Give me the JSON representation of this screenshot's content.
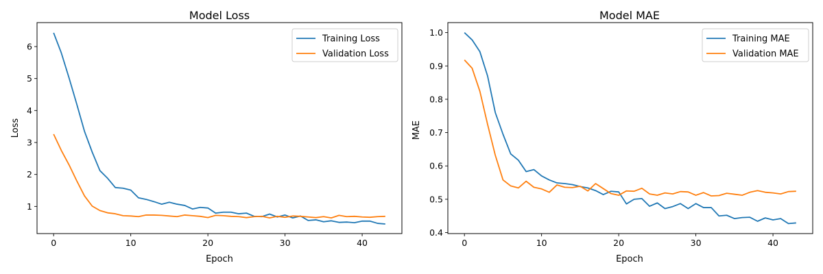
{
  "chart_data": [
    {
      "type": "line",
      "title": "Model Loss",
      "xlabel": "Epoch",
      "ylabel": "Loss",
      "xlim": [
        -2.15,
        45.15
      ],
      "ylim": [
        0.15,
        6.75
      ],
      "xticks": [
        "0",
        "10",
        "20",
        "30",
        "40"
      ],
      "yticks": [
        "1",
        "2",
        "3",
        "4",
        "5",
        "6"
      ],
      "legend": "upper right",
      "x": [
        0,
        1,
        2,
        3,
        4,
        5,
        6,
        7,
        8,
        9,
        10,
        11,
        12,
        13,
        14,
        15,
        16,
        17,
        18,
        19,
        20,
        21,
        22,
        23,
        24,
        25,
        26,
        27,
        28,
        29,
        30,
        31,
        32,
        33,
        34,
        35,
        36,
        37,
        38,
        39,
        40,
        41,
        42,
        43
      ],
      "series": [
        {
          "name": "Training Loss",
          "color": "#1f77b4",
          "values": [
            6.43,
            5.8,
            5.02,
            4.2,
            3.35,
            2.7,
            2.12,
            1.88,
            1.59,
            1.57,
            1.51,
            1.27,
            1.22,
            1.15,
            1.07,
            1.13,
            1.07,
            1.03,
            0.92,
            0.97,
            0.95,
            0.79,
            0.82,
            0.82,
            0.77,
            0.79,
            0.69,
            0.68,
            0.76,
            0.67,
            0.73,
            0.64,
            0.7,
            0.56,
            0.58,
            0.52,
            0.55,
            0.5,
            0.51,
            0.49,
            0.54,
            0.54,
            0.47,
            0.45
          ]
        },
        {
          "name": "Validation Loss",
          "color": "#ff7f0e",
          "values": [
            3.26,
            2.75,
            2.3,
            1.8,
            1.33,
            1.01,
            0.87,
            0.8,
            0.77,
            0.71,
            0.7,
            0.68,
            0.73,
            0.73,
            0.72,
            0.7,
            0.68,
            0.73,
            0.71,
            0.69,
            0.65,
            0.72,
            0.71,
            0.69,
            0.68,
            0.65,
            0.68,
            0.69,
            0.64,
            0.69,
            0.66,
            0.7,
            0.69,
            0.67,
            0.65,
            0.68,
            0.64,
            0.72,
            0.68,
            0.69,
            0.67,
            0.66,
            0.68,
            0.69
          ]
        }
      ]
    },
    {
      "type": "line",
      "title": "Model MAE",
      "xlabel": "Epoch",
      "ylabel": "MAE",
      "xlim": [
        -2.15,
        45.15
      ],
      "ylim": [
        0.397,
        1.03
      ],
      "xticks": [
        "0",
        "10",
        "20",
        "30",
        "40"
      ],
      "yticks": [
        "0.4",
        "0.5",
        "0.6",
        "0.7",
        "0.8",
        "0.9",
        "1.0"
      ],
      "legend": "upper right",
      "x": [
        0,
        1,
        2,
        3,
        4,
        5,
        6,
        7,
        8,
        9,
        10,
        11,
        12,
        13,
        14,
        15,
        16,
        17,
        18,
        19,
        20,
        21,
        22,
        23,
        24,
        25,
        26,
        27,
        28,
        29,
        30,
        31,
        32,
        33,
        34,
        35,
        36,
        37,
        38,
        39,
        40,
        41,
        42,
        43
      ],
      "series": [
        {
          "name": "Training MAE",
          "color": "#1f77b4",
          "values": [
            1.0,
            0.978,
            0.943,
            0.87,
            0.76,
            0.695,
            0.636,
            0.617,
            0.583,
            0.589,
            0.57,
            0.558,
            0.549,
            0.547,
            0.544,
            0.538,
            0.534,
            0.526,
            0.514,
            0.524,
            0.522,
            0.486,
            0.5,
            0.502,
            0.479,
            0.489,
            0.472,
            0.478,
            0.487,
            0.472,
            0.487,
            0.475,
            0.475,
            0.45,
            0.452,
            0.442,
            0.445,
            0.446,
            0.434,
            0.444,
            0.438,
            0.442,
            0.427,
            0.429
          ]
        },
        {
          "name": "Validation MAE",
          "color": "#ff7f0e",
          "values": [
            0.918,
            0.893,
            0.824,
            0.725,
            0.632,
            0.558,
            0.54,
            0.534,
            0.554,
            0.536,
            0.531,
            0.521,
            0.543,
            0.536,
            0.535,
            0.539,
            0.525,
            0.547,
            0.532,
            0.517,
            0.512,
            0.525,
            0.524,
            0.533,
            0.516,
            0.512,
            0.519,
            0.516,
            0.523,
            0.522,
            0.512,
            0.52,
            0.51,
            0.511,
            0.518,
            0.515,
            0.512,
            0.521,
            0.526,
            0.521,
            0.519,
            0.516,
            0.523,
            0.524
          ]
        }
      ]
    }
  ]
}
